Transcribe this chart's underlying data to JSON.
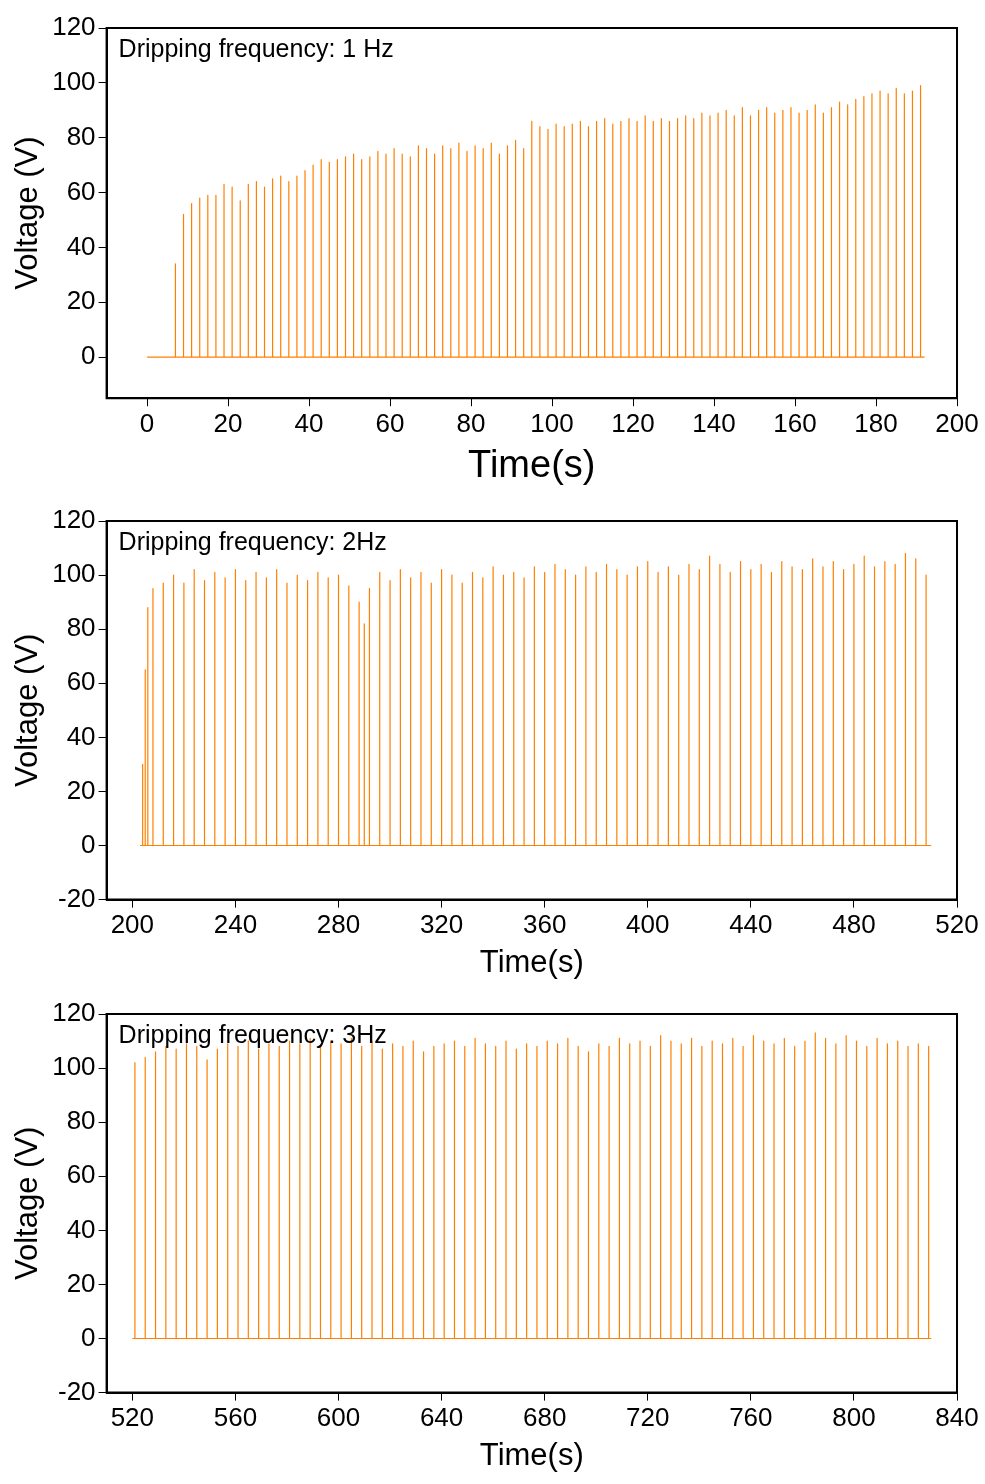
{
  "chart_data": [
    {
      "type": "line",
      "title": "Dripping frequency: 1 Hz",
      "xlabel": "Time(s)",
      "ylabel": "Voltage (V)",
      "xlim": [
        -10,
        200
      ],
      "xticks": [
        0,
        20,
        40,
        60,
        80,
        100,
        120,
        140,
        160,
        180,
        200
      ],
      "ylim": [
        -15,
        120
      ],
      "yticks": [
        0,
        20,
        40,
        60,
        80,
        100,
        120
      ],
      "grid": false,
      "legend": false,
      "marker": "none",
      "line_style": "solid",
      "series": [
        {
          "color": "#ff8000",
          "x": [
            0,
            7,
            7,
            7,
            9,
            9,
            9,
            11,
            11,
            11,
            13,
            13,
            13,
            15,
            15,
            15,
            17,
            17,
            17,
            19,
            19,
            19,
            21,
            21,
            21,
            23,
            23,
            23,
            25,
            25,
            25,
            27,
            27,
            27,
            29,
            29,
            29,
            31,
            31,
            31,
            33,
            33,
            33,
            35,
            35,
            35,
            37,
            37,
            37,
            39,
            39,
            39,
            41,
            41,
            41,
            43,
            43,
            43,
            45,
            45,
            45,
            47,
            47,
            47,
            49,
            49,
            49,
            51,
            51,
            51,
            53,
            53,
            53,
            55,
            55,
            55,
            57,
            57,
            57,
            59,
            59,
            59,
            61,
            61,
            61,
            63,
            63,
            63,
            65,
            65,
            65,
            67,
            67,
            67,
            69,
            69,
            69,
            71,
            71,
            71,
            73,
            73,
            73,
            75,
            75,
            75,
            77,
            77,
            77,
            79,
            79,
            79,
            81,
            81,
            81,
            83,
            83,
            83,
            85,
            85,
            85,
            87,
            87,
            87,
            89,
            89,
            89,
            91,
            91,
            91,
            93,
            93,
            93,
            95,
            95,
            95,
            97,
            97,
            97,
            99,
            99,
            99,
            101,
            101,
            101,
            103,
            103,
            103,
            105,
            105,
            105,
            107,
            107,
            107,
            109,
            109,
            109,
            111,
            111,
            111,
            113,
            113,
            113,
            115,
            115,
            115,
            117,
            117,
            117,
            119,
            119,
            119,
            121,
            121,
            121,
            123,
            123,
            123,
            125,
            125,
            125,
            127,
            127,
            127,
            129,
            129,
            129,
            131,
            131,
            131,
            133,
            133,
            133,
            135,
            135,
            135,
            137,
            137,
            137,
            139,
            139,
            139,
            141,
            141,
            141,
            143,
            143,
            143,
            145,
            145,
            145,
            147,
            147,
            147,
            149,
            149,
            149,
            151,
            151,
            151,
            153,
            153,
            153,
            155,
            155,
            155,
            157,
            157,
            157,
            159,
            159,
            159,
            161,
            161,
            161,
            163,
            163,
            163,
            165,
            165,
            165,
            167,
            167,
            167,
            169,
            169,
            169,
            171,
            171,
            171,
            173,
            173,
            173,
            175,
            175,
            175,
            177,
            177,
            177,
            179,
            179,
            179,
            181,
            181,
            181,
            183,
            183,
            183,
            185,
            185,
            185,
            187,
            187,
            187,
            189,
            189,
            189,
            191,
            191,
            191,
            192
          ],
          "values": [
            0,
            0,
            34,
            0,
            0,
            52,
            0,
            0,
            56,
            0,
            0,
            58,
            0,
            0,
            59,
            0,
            0,
            59,
            0,
            0,
            63,
            0,
            0,
            62,
            0,
            0,
            57,
            0,
            0,
            63,
            0,
            0,
            64,
            0,
            0,
            62,
            0,
            0,
            65,
            0,
            0,
            66,
            0,
            0,
            64,
            0,
            0,
            66,
            0,
            0,
            68,
            0,
            0,
            70,
            0,
            0,
            72,
            0,
            0,
            71,
            0,
            0,
            72,
            0,
            0,
            73,
            0,
            0,
            74,
            0,
            0,
            72,
            0,
            0,
            73,
            0,
            0,
            75,
            0,
            0,
            74,
            0,
            0,
            76,
            0,
            0,
            74,
            0,
            0,
            73,
            0,
            0,
            77,
            0,
            0,
            76,
            0,
            0,
            74,
            0,
            0,
            77,
            0,
            0,
            76,
            0,
            0,
            78,
            0,
            0,
            75,
            0,
            0,
            77,
            0,
            0,
            76,
            0,
            0,
            78,
            0,
            0,
            74,
            0,
            0,
            77,
            0,
            0,
            79,
            0,
            0,
            76,
            0,
            0,
            86,
            0,
            0,
            84,
            0,
            0,
            83,
            0,
            0,
            85,
            0,
            0,
            84,
            0,
            0,
            85,
            0,
            0,
            86,
            0,
            0,
            84,
            0,
            0,
            86,
            0,
            0,
            87,
            0,
            0,
            85,
            0,
            0,
            86,
            0,
            0,
            87,
            0,
            0,
            86,
            0,
            0,
            88,
            0,
            0,
            86,
            0,
            0,
            87,
            0,
            0,
            86,
            0,
            0,
            87,
            0,
            0,
            88,
            0,
            0,
            87,
            0,
            0,
            89,
            0,
            0,
            88,
            0,
            0,
            89,
            0,
            0,
            90,
            0,
            0,
            88,
            0,
            0,
            91,
            0,
            0,
            88,
            0,
            0,
            90,
            0,
            0,
            91,
            0,
            0,
            89,
            0,
            0,
            90,
            0,
            0,
            91,
            0,
            0,
            89,
            0,
            0,
            90,
            0,
            0,
            92,
            0,
            0,
            89,
            0,
            0,
            91,
            0,
            0,
            93,
            0,
            0,
            92,
            0,
            0,
            94,
            0,
            0,
            95,
            0,
            0,
            96,
            0,
            0,
            97,
            0,
            0,
            96,
            0,
            0,
            98,
            0,
            0,
            96,
            0,
            0,
            97,
            0,
            0,
            99,
            0,
            0
          ]
        }
      ]
    },
    {
      "type": "line",
      "title": "Dripping frequency: 2Hz",
      "xlabel": "Time(s)",
      "ylabel": "Voltage (V)",
      "xlim": [
        190,
        520
      ],
      "xticks": [
        200,
        240,
        280,
        320,
        360,
        400,
        440,
        480,
        520
      ],
      "ylim": [
        -20,
        120
      ],
      "yticks": [
        -20,
        0,
        20,
        40,
        60,
        80,
        100,
        120
      ],
      "grid": false,
      "legend": false,
      "marker": "none",
      "line_style": "solid",
      "series": [
        {
          "color": "#ff8000",
          "x": [
            203,
            204,
            204,
            204,
            205,
            205,
            205,
            206,
            206,
            206,
            208,
            208,
            208,
            212,
            212,
            212,
            216,
            216,
            216,
            220,
            220,
            220,
            224,
            224,
            224,
            228,
            228,
            228,
            232,
            232,
            232,
            236,
            236,
            236,
            240,
            240,
            240,
            244,
            244,
            244,
            248,
            248,
            248,
            252,
            252,
            252,
            256,
            256,
            256,
            260,
            260,
            260,
            264,
            264,
            264,
            268,
            268,
            268,
            272,
            272,
            272,
            276,
            276,
            276,
            280,
            280,
            280,
            284,
            284,
            284,
            288,
            288,
            288,
            290,
            290,
            290,
            292,
            292,
            292,
            296,
            296,
            296,
            300,
            300,
            300,
            304,
            304,
            304,
            308,
            308,
            308,
            312,
            312,
            312,
            316,
            316,
            316,
            320,
            320,
            320,
            324,
            324,
            324,
            328,
            328,
            328,
            332,
            332,
            332,
            336,
            336,
            336,
            340,
            340,
            340,
            344,
            344,
            344,
            348,
            348,
            348,
            352,
            352,
            352,
            356,
            356,
            356,
            360,
            360,
            360,
            364,
            364,
            364,
            368,
            368,
            368,
            372,
            372,
            372,
            376,
            376,
            376,
            380,
            380,
            380,
            384,
            384,
            384,
            388,
            388,
            388,
            392,
            392,
            392,
            396,
            396,
            396,
            400,
            400,
            400,
            404,
            404,
            404,
            408,
            408,
            408,
            412,
            412,
            412,
            416,
            416,
            416,
            420,
            420,
            420,
            424,
            424,
            424,
            428,
            428,
            428,
            432,
            432,
            432,
            436,
            436,
            436,
            440,
            440,
            440,
            444,
            444,
            444,
            448,
            448,
            448,
            452,
            452,
            452,
            456,
            456,
            456,
            460,
            460,
            460,
            464,
            464,
            464,
            468,
            468,
            468,
            472,
            472,
            472,
            476,
            476,
            476,
            480,
            480,
            480,
            484,
            484,
            484,
            488,
            488,
            488,
            492,
            492,
            492,
            496,
            496,
            496,
            500,
            500,
            500,
            504,
            504,
            504,
            508,
            508,
            508,
            510
          ],
          "values": [
            0,
            0,
            30,
            0,
            0,
            65,
            0,
            0,
            88,
            0,
            0,
            95,
            0,
            0,
            97,
            0,
            0,
            100,
            0,
            0,
            97,
            0,
            0,
            102,
            0,
            0,
            98,
            0,
            0,
            101,
            0,
            0,
            99,
            0,
            0,
            102,
            0,
            0,
            98,
            0,
            0,
            101,
            0,
            0,
            99,
            0,
            0,
            102,
            0,
            0,
            97,
            0,
            0,
            100,
            0,
            0,
            98,
            0,
            0,
            101,
            0,
            0,
            99,
            0,
            0,
            100,
            0,
            0,
            96,
            0,
            0,
            90,
            0,
            0,
            82,
            0,
            0,
            95,
            0,
            0,
            101,
            0,
            0,
            98,
            0,
            0,
            102,
            0,
            0,
            99,
            0,
            0,
            101,
            0,
            0,
            97,
            0,
            0,
            102,
            0,
            0,
            100,
            0,
            0,
            97,
            0,
            0,
            101,
            0,
            0,
            99,
            0,
            0,
            103,
            0,
            0,
            100,
            0,
            0,
            101,
            0,
            0,
            99,
            0,
            0,
            103,
            0,
            0,
            101,
            0,
            0,
            104,
            0,
            0,
            102,
            0,
            0,
            100,
            0,
            0,
            103,
            0,
            0,
            101,
            0,
            0,
            104,
            0,
            0,
            102,
            0,
            0,
            100,
            0,
            0,
            103,
            0,
            0,
            105,
            0,
            0,
            101,
            0,
            0,
            103,
            0,
            0,
            100,
            0,
            0,
            104,
            0,
            0,
            102,
            0,
            0,
            107,
            0,
            0,
            104,
            0,
            0,
            101,
            0,
            0,
            105,
            0,
            0,
            102,
            0,
            0,
            104,
            0,
            0,
            101,
            0,
            0,
            105,
            0,
            0,
            103,
            0,
            0,
            102,
            0,
            0,
            106,
            0,
            0,
            103,
            0,
            0,
            105,
            0,
            0,
            102,
            0,
            0,
            104,
            0,
            0,
            107,
            0,
            0,
            103,
            0,
            0,
            105,
            0,
            0,
            104,
            0,
            0,
            108,
            0,
            0,
            106,
            0,
            0,
            100,
            0,
            0
          ]
        }
      ]
    },
    {
      "type": "line",
      "title": "Dripping frequency: 3Hz",
      "xlabel": "Time(s)",
      "ylabel": "Voltage (V)",
      "xlim": [
        510,
        840
      ],
      "xticks": [
        520,
        560,
        600,
        640,
        680,
        720,
        760,
        800,
        840
      ],
      "ylim": [
        -20,
        120
      ],
      "yticks": [
        -20,
        0,
        20,
        40,
        60,
        80,
        100,
        120
      ],
      "grid": false,
      "legend": false,
      "marker": "none",
      "line_style": "solid",
      "series": [
        {
          "color": "#ff8000",
          "x": [
            520,
            521,
            521,
            521,
            525,
            525,
            525,
            529,
            529,
            529,
            533,
            533,
            533,
            537,
            537,
            537,
            541,
            541,
            541,
            545,
            545,
            545,
            549,
            549,
            549,
            553,
            553,
            553,
            557,
            557,
            557,
            561,
            561,
            561,
            565,
            565,
            565,
            569,
            569,
            569,
            573,
            573,
            573,
            577,
            577,
            577,
            581,
            581,
            581,
            585,
            585,
            585,
            589,
            589,
            589,
            593,
            593,
            593,
            597,
            597,
            597,
            601,
            601,
            601,
            605,
            605,
            605,
            609,
            609,
            609,
            613,
            613,
            613,
            617,
            617,
            617,
            621,
            621,
            621,
            625,
            625,
            625,
            629,
            629,
            629,
            633,
            633,
            633,
            637,
            637,
            637,
            641,
            641,
            641,
            645,
            645,
            645,
            649,
            649,
            649,
            653,
            653,
            653,
            657,
            657,
            657,
            661,
            661,
            661,
            665,
            665,
            665,
            669,
            669,
            669,
            673,
            673,
            673,
            677,
            677,
            677,
            681,
            681,
            681,
            685,
            685,
            685,
            689,
            689,
            689,
            693,
            693,
            693,
            697,
            697,
            697,
            701,
            701,
            701,
            705,
            705,
            705,
            709,
            709,
            709,
            713,
            713,
            713,
            717,
            717,
            717,
            721,
            721,
            721,
            725,
            725,
            725,
            729,
            729,
            729,
            733,
            733,
            733,
            737,
            737,
            737,
            741,
            741,
            741,
            745,
            745,
            745,
            749,
            749,
            749,
            753,
            753,
            753,
            757,
            757,
            757,
            761,
            761,
            761,
            765,
            765,
            765,
            769,
            769,
            769,
            773,
            773,
            773,
            777,
            777,
            777,
            781,
            781,
            781,
            785,
            785,
            785,
            789,
            789,
            789,
            793,
            793,
            793,
            797,
            797,
            797,
            801,
            801,
            801,
            805,
            805,
            805,
            809,
            809,
            809,
            813,
            813,
            813,
            817,
            817,
            817,
            821,
            821,
            821,
            825,
            825,
            825,
            829,
            829,
            829,
            830
          ],
          "values": [
            0,
            0,
            102,
            0,
            0,
            104,
            0,
            0,
            106,
            0,
            0,
            108,
            0,
            0,
            107,
            0,
            0,
            109,
            0,
            0,
            108,
            0,
            0,
            103,
            0,
            0,
            107,
            0,
            0,
            109,
            0,
            0,
            108,
            0,
            0,
            110,
            0,
            0,
            107,
            0,
            0,
            109,
            0,
            0,
            108,
            0,
            0,
            110,
            0,
            0,
            109,
            0,
            0,
            111,
            0,
            0,
            108,
            0,
            0,
            110,
            0,
            0,
            109,
            0,
            0,
            111,
            0,
            0,
            108,
            0,
            0,
            110,
            0,
            0,
            107,
            0,
            0,
            109,
            0,
            0,
            108,
            0,
            0,
            110,
            0,
            0,
            106,
            0,
            0,
            108,
            0,
            0,
            109,
            0,
            0,
            110,
            0,
            0,
            108,
            0,
            0,
            111,
            0,
            0,
            109,
            0,
            0,
            108,
            0,
            0,
            110,
            0,
            0,
            107,
            0,
            0,
            109,
            0,
            0,
            108,
            0,
            0,
            110,
            0,
            0,
            109,
            0,
            0,
            111,
            0,
            0,
            108,
            0,
            0,
            106,
            0,
            0,
            109,
            0,
            0,
            108,
            0,
            0,
            111,
            0,
            0,
            109,
            0,
            0,
            110,
            0,
            0,
            108,
            0,
            0,
            112,
            0,
            0,
            110,
            0,
            0,
            109,
            0,
            0,
            111,
            0,
            0,
            108,
            0,
            0,
            110,
            0,
            0,
            109,
            0,
            0,
            111,
            0,
            0,
            108,
            0,
            0,
            112,
            0,
            0,
            110,
            0,
            0,
            109,
            0,
            0,
            111,
            0,
            0,
            108,
            0,
            0,
            110,
            0,
            0,
            113,
            0,
            0,
            111,
            0,
            0,
            109,
            0,
            0,
            112,
            0,
            0,
            110,
            0,
            0,
            108,
            0,
            0,
            111,
            0,
            0,
            109,
            0,
            0,
            110,
            0,
            0,
            108,
            0,
            0,
            109,
            0,
            0,
            108,
            0,
            0
          ]
        }
      ]
    }
  ]
}
